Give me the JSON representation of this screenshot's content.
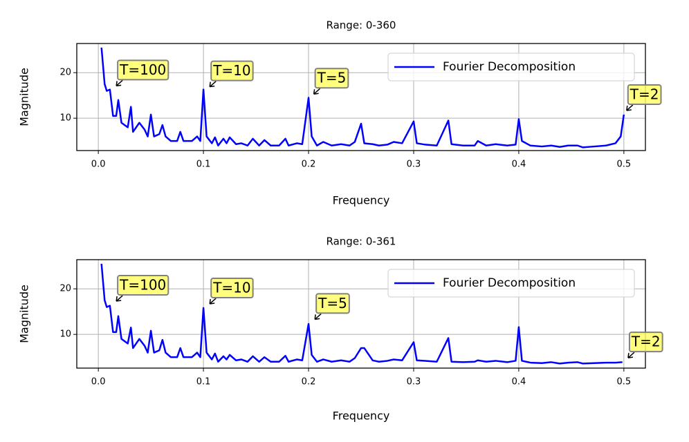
{
  "chart_data": [
    {
      "type": "line",
      "title": "Range: 0-360",
      "xlabel": "Frequency",
      "ylabel": "Magnitude",
      "x": [
        0.003,
        0.006,
        0.008,
        0.011,
        0.014,
        0.017,
        0.019,
        0.022,
        0.028,
        0.031,
        0.033,
        0.039,
        0.044,
        0.047,
        0.05,
        0.053,
        0.058,
        0.061,
        0.064,
        0.069,
        0.075,
        0.078,
        0.081,
        0.089,
        0.094,
        0.097,
        0.1,
        0.103,
        0.108,
        0.111,
        0.114,
        0.119,
        0.122,
        0.125,
        0.131,
        0.136,
        0.142,
        0.147,
        0.153,
        0.158,
        0.164,
        0.172,
        0.178,
        0.181,
        0.189,
        0.194,
        0.2,
        0.203,
        0.208,
        0.214,
        0.222,
        0.231,
        0.239,
        0.244,
        0.25,
        0.253,
        0.261,
        0.267,
        0.275,
        0.281,
        0.289,
        0.3,
        0.303,
        0.311,
        0.322,
        0.333,
        0.336,
        0.347,
        0.358,
        0.361,
        0.369,
        0.378,
        0.389,
        0.397,
        0.4,
        0.403,
        0.411,
        0.422,
        0.431,
        0.439,
        0.447,
        0.456,
        0.461,
        0.472,
        0.483,
        0.492,
        0.497,
        0.5
      ],
      "series": [
        {
          "name": "Fourier Decomposition",
          "color": "#0000ff",
          "values": [
            25.5,
            17.5,
            16,
            16.3,
            10.5,
            10.5,
            14,
            9,
            8,
            12.5,
            7,
            9,
            7.5,
            6,
            10.8,
            6,
            6.5,
            8.5,
            6,
            5,
            5,
            7,
            5,
            5,
            6,
            5,
            16.3,
            6,
            4.5,
            5.8,
            4,
            5.5,
            4.5,
            5.8,
            4.3,
            4.5,
            4,
            5.5,
            4,
            5.2,
            4,
            4,
            5.5,
            4,
            4.5,
            4.3,
            14.5,
            6,
            4,
            4.8,
            4,
            4.3,
            4,
            4.8,
            8.8,
            4.5,
            4.3,
            4,
            4.2,
            4.8,
            4.5,
            9.3,
            4.5,
            4.2,
            4,
            9.5,
            4.3,
            4,
            4,
            5,
            4,
            4.3,
            4,
            4.2,
            9.8,
            5,
            4,
            3.8,
            4,
            3.7,
            4,
            4,
            3.6,
            3.8,
            4,
            4.5,
            6,
            10.8
          ]
        }
      ],
      "annotations": [
        {
          "text": "T=100",
          "x": 0.0171,
          "y": 17.1
        },
        {
          "text": "T=10",
          "x": 0.106,
          "y": 16.9
        },
        {
          "text": "T=5",
          "x": 0.205,
          "y": 15.3
        },
        {
          "text": "T=2",
          "x": 0.5026,
          "y": 11.7
        }
      ],
      "xlim": [
        -0.0205,
        0.5205
      ],
      "ylim": [
        2.9,
        26.4
      ],
      "xticks": [
        {
          "value": 0,
          "label": "0.0"
        },
        0.1,
        0.2,
        0.3,
        0.4,
        0.5
      ],
      "yticks": [
        10,
        20
      ],
      "grid": true,
      "legend": "upper right"
    },
    {
      "type": "line",
      "title": "Range: 0-361",
      "xlabel": "Frequency",
      "ylabel": "Magnitude",
      "x": [
        0.003,
        0.006,
        0.008,
        0.011,
        0.014,
        0.017,
        0.019,
        0.022,
        0.028,
        0.031,
        0.033,
        0.039,
        0.044,
        0.047,
        0.05,
        0.053,
        0.058,
        0.061,
        0.064,
        0.069,
        0.075,
        0.078,
        0.081,
        0.089,
        0.094,
        0.097,
        0.1,
        0.103,
        0.108,
        0.111,
        0.114,
        0.119,
        0.122,
        0.125,
        0.131,
        0.136,
        0.142,
        0.147,
        0.153,
        0.158,
        0.164,
        0.172,
        0.178,
        0.181,
        0.189,
        0.194,
        0.2,
        0.203,
        0.208,
        0.214,
        0.222,
        0.231,
        0.239,
        0.244,
        0.25,
        0.253,
        0.261,
        0.267,
        0.275,
        0.281,
        0.289,
        0.3,
        0.303,
        0.311,
        0.322,
        0.333,
        0.336,
        0.347,
        0.358,
        0.361,
        0.369,
        0.378,
        0.389,
        0.397,
        0.4,
        0.403,
        0.411,
        0.422,
        0.431,
        0.439,
        0.447,
        0.456,
        0.461,
        0.472,
        0.483,
        0.492,
        0.4986
      ],
      "series": [
        {
          "name": "Fourier Decomposition",
          "color": "#0000ff",
          "values": [
            25.5,
            17.5,
            16,
            16.3,
            10.5,
            10.5,
            14,
            9,
            8,
            11.5,
            7,
            9,
            7.5,
            6,
            10.8,
            6,
            6.5,
            8.8,
            6,
            5,
            5,
            7,
            5,
            5,
            6,
            5,
            15.8,
            6,
            4.5,
            5.8,
            4,
            5.2,
            4.5,
            5.5,
            4.3,
            4.5,
            4,
            5.2,
            4,
            5,
            4,
            4,
            5.3,
            4,
            4.5,
            4.3,
            12.3,
            5.5,
            4,
            4.5,
            4,
            4.3,
            4,
            4.8,
            7,
            7,
            4.3,
            4,
            4.2,
            4.5,
            4.3,
            8.3,
            4.3,
            4.2,
            4,
            9.2,
            4,
            3.9,
            4,
            4.3,
            4,
            4.2,
            3.9,
            4.2,
            11.6,
            4.2,
            3.8,
            3.7,
            3.9,
            3.6,
            3.8,
            3.9,
            3.6,
            3.7,
            3.8,
            3.8,
            3.9
          ]
        }
      ],
      "annotations": [
        {
          "text": "T=100",
          "x": 0.0171,
          "y": 17.3
        },
        {
          "text": "T=10",
          "x": 0.106,
          "y": 16.7
        },
        {
          "text": "T=5",
          "x": 0.206,
          "y": 13.3
        },
        {
          "text": "T=2",
          "x": 0.504,
          "y": 4.85
        }
      ],
      "xlim": [
        -0.0205,
        0.5205
      ],
      "ylim": [
        2.6,
        26.4
      ],
      "xticks": [
        {
          "value": 0,
          "label": "0.0"
        },
        0.1,
        0.2,
        0.3,
        0.4,
        0.5
      ],
      "yticks": [
        10,
        20
      ],
      "grid": true,
      "legend": "upper right"
    }
  ]
}
